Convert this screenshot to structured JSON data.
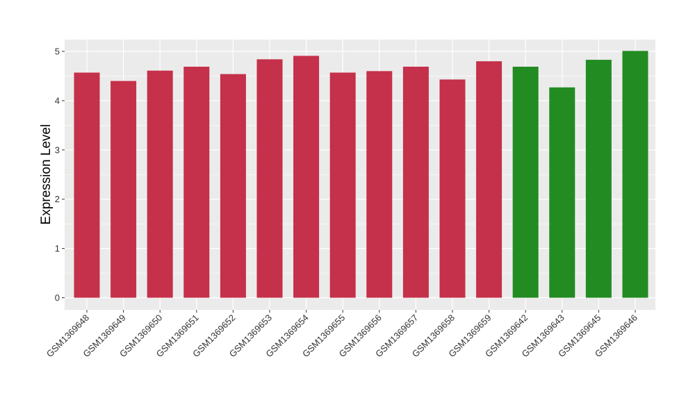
{
  "chart_data": {
    "type": "bar",
    "title": "",
    "xlabel": "",
    "ylabel": "Expression Level",
    "ylim": [
      0,
      5.25
    ],
    "yticks": [
      0,
      1,
      2,
      3,
      4,
      5
    ],
    "grid": true,
    "legend": "none",
    "categories": [
      "GSM1369648",
      "GSM1369649",
      "GSM1369650",
      "GSM1369651",
      "GSM1369652",
      "GSM1369653",
      "GSM1369654",
      "GSM1369655",
      "GSM1369656",
      "GSM1369657",
      "GSM1369658",
      "GSM1369659",
      "GSM1369642",
      "GSM1369643",
      "GSM1369645",
      "GSM1369646"
    ],
    "values": [
      4.57,
      4.4,
      4.61,
      4.69,
      4.54,
      4.84,
      4.91,
      4.57,
      4.6,
      4.69,
      4.43,
      4.8,
      4.69,
      4.27,
      4.83,
      5.01
    ],
    "bar_colors": [
      "#C5304A",
      "#C5304A",
      "#C5304A",
      "#C5304A",
      "#C5304A",
      "#C5304A",
      "#C5304A",
      "#C5304A",
      "#C5304A",
      "#C5304A",
      "#C5304A",
      "#C5304A",
      "#228B22",
      "#228B22",
      "#228B22",
      "#228B22"
    ],
    "panel_color": "#EBEBEB",
    "grid_color": "#FFFFFF"
  }
}
